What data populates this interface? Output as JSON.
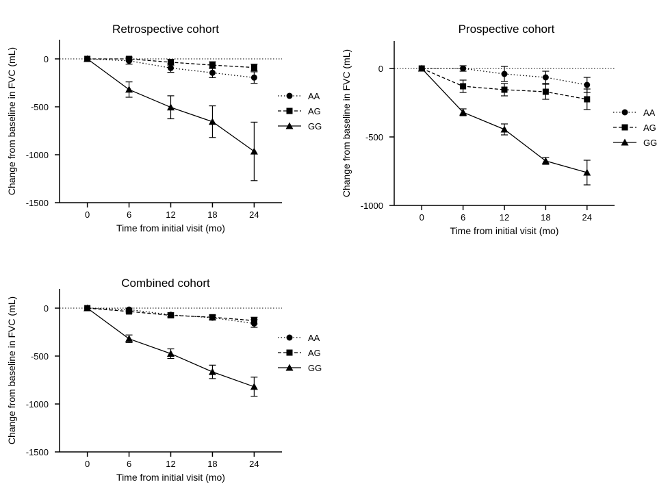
{
  "chart_data": [
    {
      "type": "line",
      "title": "Retrospective cohort",
      "xlabel": "Time from initial visit (mo)",
      "ylabel": "Change from baseline in FVC (mL)",
      "x": [
        0,
        6,
        12,
        18,
        24
      ],
      "xticks": [
        "0",
        "6",
        "12",
        "18",
        "24"
      ],
      "xlim": [
        -4,
        28
      ],
      "ylim": [
        -1500,
        200
      ],
      "yticks": [
        0,
        -500,
        -1000,
        -1500
      ],
      "ytick_labels": [
        "0",
        "-500",
        "-1000",
        "-1500"
      ],
      "reference_line": 0,
      "legend": "right",
      "series": [
        {
          "name": "AA",
          "values": [
            0,
            -20,
            -95,
            -145,
            -195
          ],
          "error": [
            0,
            35,
            45,
            50,
            60
          ]
        },
        {
          "name": "AG",
          "values": [
            0,
            0,
            -35,
            -65,
            -90
          ],
          "error": [
            0,
            20,
            30,
            35,
            35
          ]
        },
        {
          "name": "GG",
          "values": [
            0,
            -320,
            -505,
            -655,
            -965
          ],
          "error": [
            0,
            80,
            120,
            165,
            305
          ]
        }
      ]
    },
    {
      "type": "line",
      "title": "Prospective cohort",
      "xlabel": "Time from initial visit (mo)",
      "ylabel": "Change from baseline in FVC (mL)",
      "x": [
        0,
        6,
        12,
        18,
        24
      ],
      "xticks": [
        "0",
        "6",
        "12",
        "18",
        "24"
      ],
      "xlim": [
        -4,
        28
      ],
      "ylim": [
        -1000,
        200
      ],
      "yticks": [
        0,
        -500,
        -1000
      ],
      "ytick_labels": [
        "0",
        "-500",
        "-1000"
      ],
      "reference_line": 0,
      "legend": "right",
      "series": [
        {
          "name": "AA",
          "values": [
            0,
            0,
            -40,
            -65,
            -120
          ],
          "error": [
            0,
            20,
            55,
            45,
            55
          ]
        },
        {
          "name": "AG",
          "values": [
            0,
            -130,
            -155,
            -170,
            -225
          ],
          "error": [
            0,
            45,
            45,
            55,
            75
          ]
        },
        {
          "name": "GG",
          "values": [
            0,
            -320,
            -445,
            -675,
            -760
          ],
          "error": [
            0,
            25,
            40,
            25,
            90
          ]
        }
      ]
    },
    {
      "type": "line",
      "title": "Combined cohort",
      "xlabel": "Time from initial visit (mo)",
      "ylabel": "Change from baseline in FVC (mL)",
      "x": [
        0,
        6,
        12,
        18,
        24
      ],
      "xticks": [
        "0",
        "6",
        "12",
        "18",
        "24"
      ],
      "xlim": [
        -4,
        28
      ],
      "ylim": [
        -1500,
        200
      ],
      "yticks": [
        0,
        -500,
        -1000,
        -1500
      ],
      "ytick_labels": [
        "0",
        "-500",
        "-1000",
        "-1500"
      ],
      "reference_line": 0,
      "legend": "right",
      "series": [
        {
          "name": "AA",
          "values": [
            0,
            -15,
            -70,
            -100,
            -160
          ],
          "error": [
            0,
            15,
            20,
            25,
            40
          ]
        },
        {
          "name": "AG",
          "values": [
            0,
            -35,
            -75,
            -95,
            -130
          ],
          "error": [
            0,
            15,
            25,
            25,
            35
          ]
        },
        {
          "name": "GG",
          "values": [
            0,
            -320,
            -475,
            -665,
            -820
          ],
          "error": [
            0,
            40,
            50,
            70,
            100
          ]
        }
      ]
    }
  ]
}
